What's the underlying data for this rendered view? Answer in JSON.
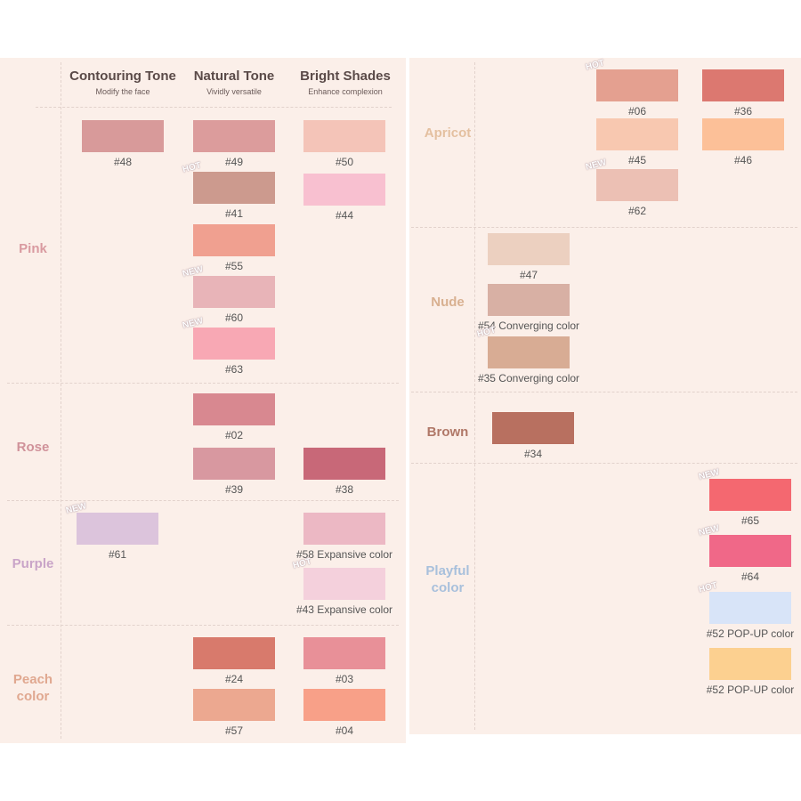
{
  "left_panel": {
    "columns": [
      {
        "title": "Contouring Tone",
        "subtitle": "Modify the face"
      },
      {
        "title": "Natural Tone",
        "subtitle": "Vividly versatile"
      },
      {
        "title": "Bright Shades",
        "subtitle": "Enhance complexion"
      }
    ],
    "groups": [
      {
        "name": "Pink",
        "color": "#d99aa0",
        "swatches": [
          {
            "label": "#48",
            "color": "#d89a9a"
          },
          {
            "label": "#49",
            "color": "#dc9c9c"
          },
          {
            "label": "#50",
            "color": "#f4c4b8"
          },
          {
            "label": "#41",
            "badge": "HOT",
            "color": "#cc9a8e"
          },
          {
            "label": "#44",
            "color": "#f8c0d0"
          },
          {
            "label": "#55",
            "color": "#f0a090"
          },
          {
            "label": "#60",
            "badge": "NEW",
            "color": "#e8b4b8"
          },
          {
            "label": "#63",
            "badge": "NEW",
            "color": "#f8a8b4"
          }
        ]
      },
      {
        "name": "Rose",
        "color": "#d0929a",
        "swatches": [
          {
            "label": "#02",
            "color": "#d88890"
          },
          {
            "label": "#39",
            "color": "#d898a0"
          },
          {
            "label": "#38",
            "color": "#c86878"
          }
        ]
      },
      {
        "name": "Purple",
        "color": "#c9a4c8",
        "swatches": [
          {
            "label": "#61",
            "badge": "NEW",
            "color": "#dcc4dc"
          },
          {
            "label": "#58 Expansive color",
            "color": "#ecb8c4"
          },
          {
            "label": "#43 Expansive color",
            "badge": "HOT",
            "color": "#f4d0dc"
          }
        ]
      },
      {
        "name": "Peach color",
        "color": "#e0a890",
        "swatches": [
          {
            "label": "#24",
            "color": "#d87a6c"
          },
          {
            "label": "#03",
            "color": "#e89098"
          },
          {
            "label": "#57",
            "color": "#eca890"
          },
          {
            "label": "#04",
            "color": "#f8a088"
          }
        ]
      }
    ]
  },
  "right_panel": {
    "groups": [
      {
        "name": "Apricot",
        "color": "#e4c0a0",
        "swatches": [
          {
            "label": "#06",
            "badge": "HOT",
            "color": "#e4a090"
          },
          {
            "label": "#36",
            "color": "#dc7870"
          },
          {
            "label": "#45",
            "color": "#f8c8b0"
          },
          {
            "label": "#46",
            "color": "#fcc098"
          },
          {
            "label": "#62",
            "badge": "NEW",
            "color": "#ecc0b4"
          }
        ]
      },
      {
        "name": "Nude",
        "color": "#d8b090",
        "swatches": [
          {
            "label": "#47",
            "color": "#ecd0c0"
          },
          {
            "label": "#54 Converging color",
            "color": "#d8b0a4"
          },
          {
            "label": "#35 Converging color",
            "badge": "HOT",
            "color": "#d8ac94"
          }
        ]
      },
      {
        "name": "Brown",
        "color": "#b07868",
        "swatches": [
          {
            "label": "#34",
            "color": "#b87060"
          }
        ]
      },
      {
        "name": "Playful color",
        "color": "#a8c0dc",
        "swatches": [
          {
            "label": "#65",
            "badge": "NEW",
            "color": "#f46870"
          },
          {
            "label": "#64",
            "badge": "NEW",
            "color": "#f06888"
          },
          {
            "label": "#52 POP-UP color",
            "badge": "HOT",
            "color": "#d8e4f8"
          },
          {
            "label": "#52 POP-UP color",
            "color": "#fcd090"
          }
        ]
      }
    ]
  }
}
